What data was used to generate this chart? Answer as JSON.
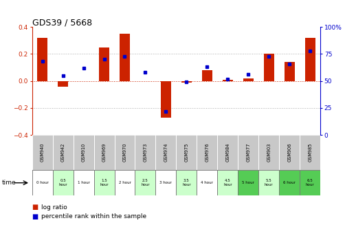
{
  "title": "GDS39 / 5668",
  "samples": [
    "GSM940",
    "GSM942",
    "GSM910",
    "GSM969",
    "GSM970",
    "GSM973",
    "GSM974",
    "GSM975",
    "GSM976",
    "GSM984",
    "GSM977",
    "GSM903",
    "GSM906",
    "GSM985"
  ],
  "time_labels": [
    "0 hour",
    "0.5\nhour",
    "1 hour",
    "1.5\nhour",
    "2 hour",
    "2.5\nhour",
    "3 hour",
    "3.5\nhour",
    "4 hour",
    "4.5\nhour",
    "5 hour",
    "5.5\nhour",
    "6 hour",
    "6.5\nhour"
  ],
  "log_ratio": [
    0.32,
    -0.04,
    0.0,
    0.25,
    0.35,
    0.0,
    -0.27,
    -0.01,
    0.08,
    0.01,
    0.02,
    0.2,
    0.14,
    0.32
  ],
  "percentile": [
    68,
    55,
    62,
    70,
    73,
    58,
    22,
    49,
    63,
    52,
    56,
    73,
    66,
    78
  ],
  "ylim_left": [
    -0.4,
    0.4
  ],
  "ylim_right": [
    0,
    100
  ],
  "bar_color": "#cc2200",
  "dot_color": "#0000cc",
  "bg_color_main": "#ffffff",
  "sample_bg": "#c8c8c8",
  "dotted_line_color": "#aaaaaa",
  "zero_line_color": "#cc2200",
  "time_bg_colors": [
    "#ffffff",
    "#ccffcc",
    "#ffffff",
    "#ccffcc",
    "#ffffff",
    "#ccffcc",
    "#ffffff",
    "#ccffcc",
    "#ffffff",
    "#ccffcc",
    "#55cc55",
    "#ccffcc",
    "#55cc55",
    "#55cc55"
  ]
}
